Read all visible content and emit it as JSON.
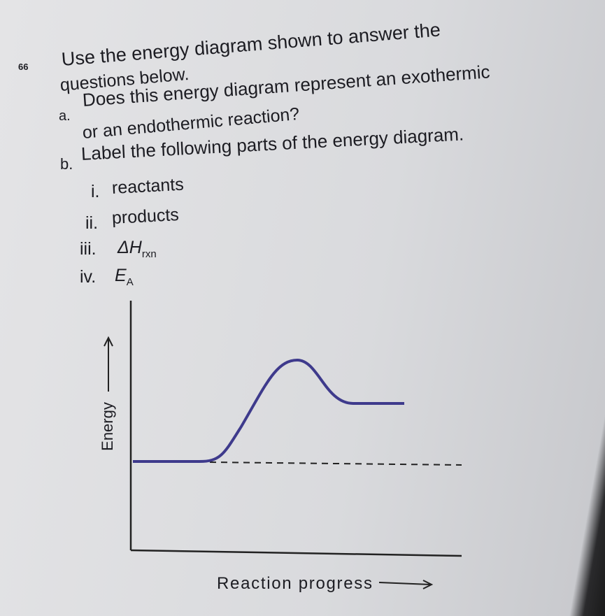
{
  "question": {
    "number": "66",
    "text": [
      "Use the energy diagram shown to answer the",
      "questions below."
    ],
    "parts": [
      {
        "label": "a.",
        "text": [
          "Does this energy diagram represent an exothermic",
          "or an endothermic reaction?"
        ]
      },
      {
        "label": "b.",
        "text": "Label the following parts of the energy diagram.",
        "items": [
          {
            "label": "i.",
            "text": "reactants"
          },
          {
            "label": "ii.",
            "text": "products"
          },
          {
            "label": "iii.",
            "text": "ΔH",
            "subscript": "rxn"
          },
          {
            "label": "iv.",
            "text": "E",
            "subscript": "A"
          }
        ]
      }
    ]
  },
  "diagram": {
    "y_axis_label": "Energy",
    "x_axis_label": "Reaction progress"
  }
}
